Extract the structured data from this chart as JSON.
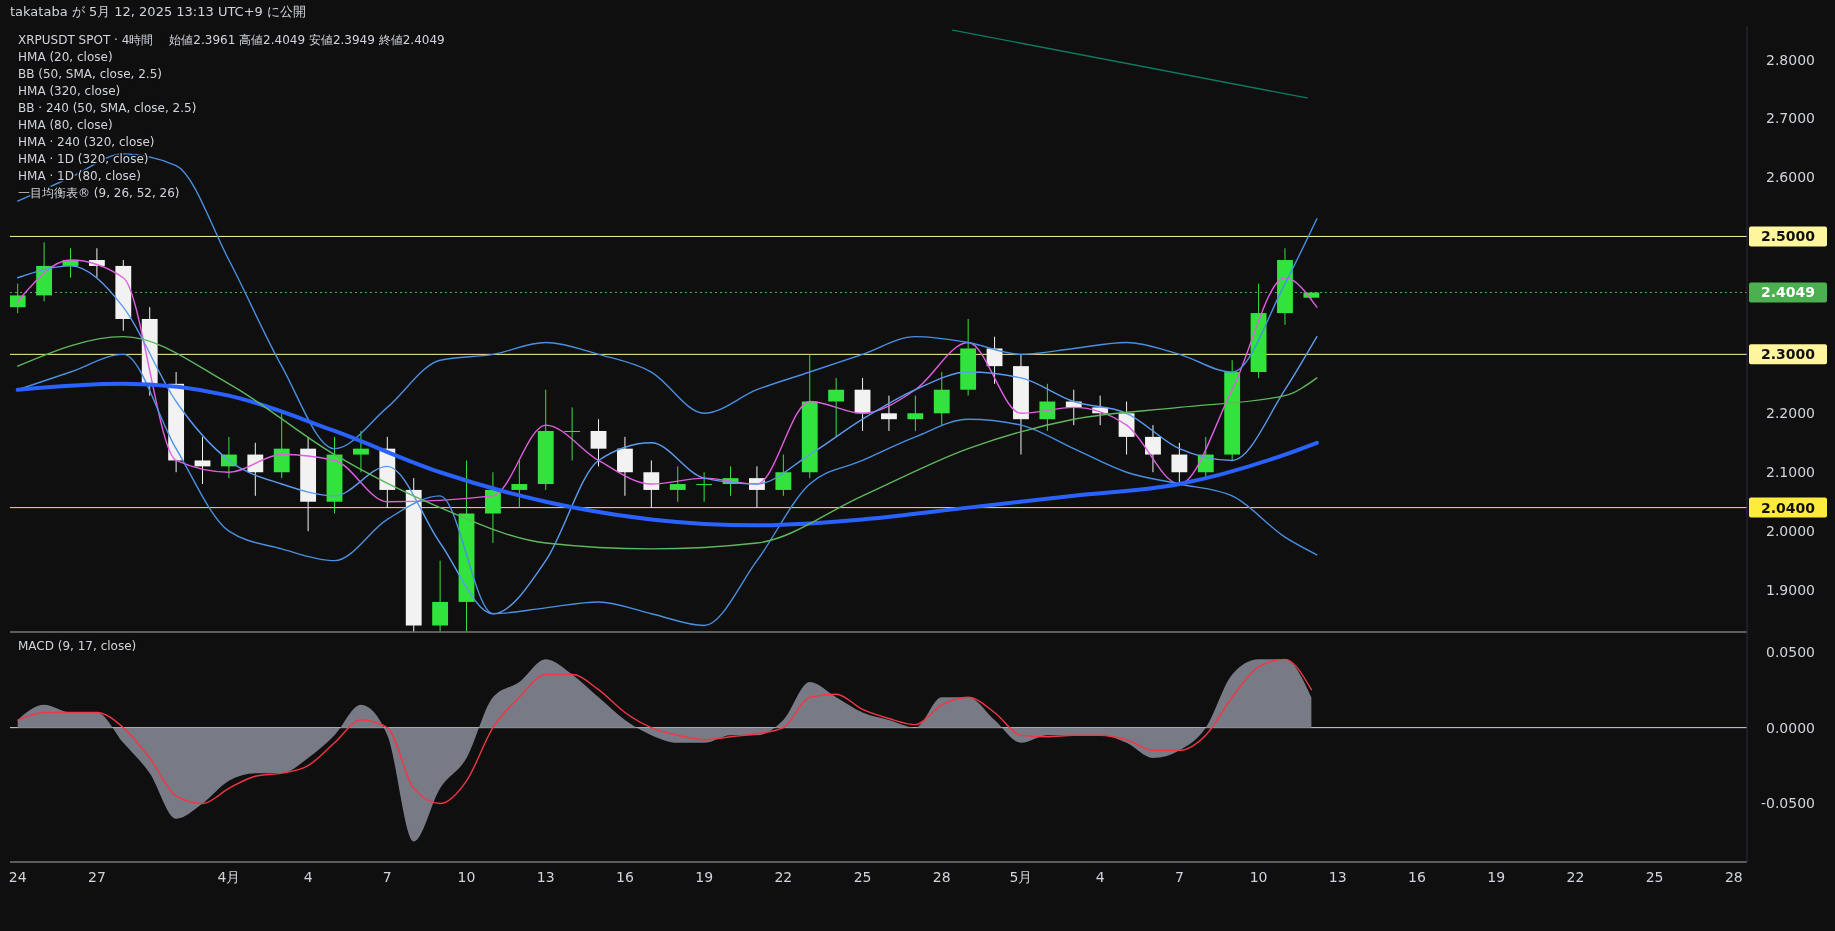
{
  "chart_data": [
    {
      "type": "candlestick",
      "title": "XRPUSDT SPOT · 4時間",
      "annotations": [
        "takataba が 5月 12, 2025 13:13 UTC+9 に公開",
        "始値2.3961 高値2.4049 安値2.3949 終値2.4049",
        "HMA (20, close)",
        "BB (50, SMA, close, 2.5)",
        "HMA (320, close)",
        "BB · 240 (50, SMA, close, 2.5)",
        "HMA (80, close)",
        "HMA · 240 (320, close)",
        "HMA · 1D (320, close)",
        "HMA · 1D (80, close)",
        "一目均衡表® (9, 26, 52, 26)"
      ],
      "x": [
        "2025-03-24",
        "2025-03-25",
        "2025-03-26",
        "2025-03-27",
        "2025-03-28",
        "2025-03-29",
        "2025-03-30",
        "2025-03-31",
        "2025-04-01",
        "2025-04-02",
        "2025-04-03",
        "2025-04-04",
        "2025-04-05",
        "2025-04-06",
        "2025-04-07",
        "2025-04-08",
        "2025-04-09",
        "2025-04-10",
        "2025-04-11",
        "2025-04-12",
        "2025-04-13",
        "2025-04-14",
        "2025-04-15",
        "2025-04-16",
        "2025-04-17",
        "2025-04-18",
        "2025-04-19",
        "2025-04-20",
        "2025-04-21",
        "2025-04-22",
        "2025-04-23",
        "2025-04-24",
        "2025-04-25",
        "2025-04-26",
        "2025-04-27",
        "2025-04-28",
        "2025-04-29",
        "2025-04-30",
        "2025-05-01",
        "2025-05-02",
        "2025-05-03",
        "2025-05-04",
        "2025-05-05",
        "2025-05-06",
        "2025-05-07",
        "2025-05-08",
        "2025-05-09",
        "2025-05-10",
        "2025-05-11",
        "2025-05-12"
      ],
      "ohlc": [
        [
          2.38,
          2.42,
          2.37,
          2.4
        ],
        [
          2.4,
          2.49,
          2.39,
          2.45
        ],
        [
          2.45,
          2.48,
          2.43,
          2.46
        ],
        [
          2.46,
          2.48,
          2.43,
          2.45
        ],
        [
          2.45,
          2.46,
          2.34,
          2.36
        ],
        [
          2.36,
          2.38,
          2.23,
          2.25
        ],
        [
          2.25,
          2.27,
          2.1,
          2.12
        ],
        [
          2.12,
          2.16,
          2.08,
          2.11
        ],
        [
          2.11,
          2.16,
          2.09,
          2.13
        ],
        [
          2.13,
          2.15,
          2.06,
          2.1
        ],
        [
          2.1,
          2.2,
          2.09,
          2.14
        ],
        [
          2.14,
          2.16,
          2.0,
          2.05
        ],
        [
          2.05,
          2.16,
          2.03,
          2.13
        ],
        [
          2.13,
          2.17,
          2.1,
          2.14
        ],
        [
          2.14,
          2.16,
          2.04,
          2.07
        ],
        [
          2.07,
          2.09,
          1.83,
          1.84
        ],
        [
          1.84,
          1.95,
          1.83,
          1.88
        ],
        [
          1.88,
          2.12,
          1.83,
          2.03
        ],
        [
          2.03,
          2.1,
          1.98,
          2.07
        ],
        [
          2.07,
          2.12,
          2.04,
          2.08
        ],
        [
          2.08,
          2.24,
          2.07,
          2.17
        ],
        [
          2.17,
          2.21,
          2.12,
          2.17
        ],
        [
          2.17,
          2.19,
          2.11,
          2.14
        ],
        [
          2.14,
          2.16,
          2.06,
          2.1
        ],
        [
          2.1,
          2.12,
          2.04,
          2.07
        ],
        [
          2.07,
          2.11,
          2.05,
          2.08
        ],
        [
          2.08,
          2.1,
          2.05,
          2.08
        ],
        [
          2.08,
          2.11,
          2.06,
          2.09
        ],
        [
          2.09,
          2.11,
          2.04,
          2.07
        ],
        [
          2.07,
          2.13,
          2.06,
          2.1
        ],
        [
          2.1,
          2.3,
          2.09,
          2.22
        ],
        [
          2.22,
          2.26,
          2.16,
          2.24
        ],
        [
          2.24,
          2.26,
          2.17,
          2.2
        ],
        [
          2.2,
          2.23,
          2.17,
          2.19
        ],
        [
          2.19,
          2.23,
          2.17,
          2.2
        ],
        [
          2.2,
          2.27,
          2.18,
          2.24
        ],
        [
          2.24,
          2.36,
          2.23,
          2.31
        ],
        [
          2.31,
          2.33,
          2.25,
          2.28
        ],
        [
          2.28,
          2.3,
          2.13,
          2.19
        ],
        [
          2.19,
          2.25,
          2.17,
          2.22
        ],
        [
          2.22,
          2.24,
          2.18,
          2.21
        ],
        [
          2.21,
          2.23,
          2.18,
          2.2
        ],
        [
          2.2,
          2.22,
          2.13,
          2.16
        ],
        [
          2.16,
          2.18,
          2.1,
          2.13
        ],
        [
          2.13,
          2.15,
          2.08,
          2.1
        ],
        [
          2.1,
          2.16,
          2.09,
          2.13
        ],
        [
          2.13,
          2.29,
          2.12,
          2.27
        ],
        [
          2.27,
          2.42,
          2.26,
          2.37
        ],
        [
          2.37,
          2.48,
          2.35,
          2.46
        ],
        [
          2.3961,
          2.4049,
          2.3949,
          2.4049
        ]
      ],
      "series": [
        {
          "type": "line",
          "color": "#e05ee0",
          "x": [
            "2025-03-24",
            "2025-03-26",
            "2025-03-28",
            "2025-03-30",
            "2025-04-01",
            "2025-04-03",
            "2025-04-05",
            "2025-04-07",
            "2025-04-11",
            "2025-04-13",
            "2025-04-15",
            "2025-04-17",
            "2025-04-19",
            "2025-04-21",
            "2025-04-23",
            "2025-04-25",
            "2025-04-27",
            "2025-04-29",
            "2025-05-01",
            "2025-05-03",
            "2025-05-05",
            "2025-05-07",
            "2025-05-09",
            "2025-05-11",
            "2025-05-12T05:00"
          ],
          "values": [
            2.39,
            2.46,
            2.43,
            2.12,
            2.1,
            2.13,
            2.12,
            2.05,
            2.06,
            2.18,
            2.12,
            2.08,
            2.09,
            2.08,
            2.22,
            2.2,
            2.24,
            2.32,
            2.2,
            2.21,
            2.18,
            2.08,
            2.24,
            2.43,
            2.38
          ]
        },
        {
          "type": "line",
          "color": "#4a8fe0",
          "x": [
            "2025-03-24",
            "2025-03-26",
            "2025-03-28",
            "2025-03-30",
            "2025-04-01",
            "2025-04-03",
            "2025-04-05",
            "2025-04-07",
            "2025-04-09",
            "2025-04-11",
            "2025-04-13",
            "2025-04-15",
            "2025-04-17",
            "2025-04-19",
            "2025-04-21",
            "2025-04-23",
            "2025-04-25",
            "2025-04-27",
            "2025-04-29",
            "2025-05-01",
            "2025-05-03",
            "2025-05-05",
            "2025-05-07",
            "2025-05-09",
            "2025-05-11",
            "2025-05-12T05:00"
          ],
          "values": [
            2.56,
            2.6,
            2.64,
            2.62,
            2.46,
            2.28,
            2.14,
            2.21,
            2.29,
            2.3,
            2.32,
            2.3,
            2.27,
            2.2,
            2.24,
            2.27,
            2.3,
            2.33,
            2.32,
            2.3,
            2.31,
            2.32,
            2.3,
            2.27,
            2.42,
            2.53
          ]
        },
        {
          "type": "line",
          "color": "#5b9cf0",
          "x": [
            "2025-03-24",
            "2025-03-26",
            "2025-03-28",
            "2025-03-30",
            "2025-04-01",
            "2025-04-03",
            "2025-04-05",
            "2025-04-07",
            "2025-04-09",
            "2025-04-11",
            "2025-04-13",
            "2025-04-15",
            "2025-04-17",
            "2025-04-19",
            "2025-04-21",
            "2025-04-23",
            "2025-04-25",
            "2025-04-27",
            "2025-04-29",
            "2025-05-01",
            "2025-05-03",
            "2025-05-05",
            "2025-05-07",
            "2025-05-09",
            "2025-05-11",
            "2025-05-12T05:00"
          ],
          "values": [
            2.43,
            2.45,
            2.38,
            2.22,
            2.12,
            2.08,
            2.06,
            2.11,
            1.98,
            1.86,
            1.95,
            2.12,
            2.15,
            2.09,
            2.08,
            2.13,
            2.19,
            2.24,
            2.27,
            2.26,
            2.22,
            2.2,
            2.14,
            2.12,
            2.24,
            2.33
          ]
        },
        {
          "type": "line",
          "color": "#4a8fe0",
          "x": [
            "2025-03-24",
            "2025-03-26",
            "2025-03-28",
            "2025-03-30",
            "2025-04-01",
            "2025-04-03",
            "2025-04-05",
            "2025-04-07",
            "2025-04-09",
            "2025-04-11",
            "2025-04-13",
            "2025-04-15",
            "2025-04-17",
            "2025-04-19",
            "2025-04-21",
            "2025-04-23",
            "2025-04-25",
            "2025-04-27",
            "2025-04-29",
            "2025-05-01",
            "2025-05-03",
            "2025-05-05",
            "2025-05-07",
            "2025-05-09",
            "2025-05-11",
            "2025-05-12T05:00"
          ],
          "values": [
            2.24,
            2.27,
            2.3,
            2.14,
            2.0,
            1.97,
            1.95,
            2.02,
            2.06,
            1.86,
            1.87,
            1.88,
            1.86,
            1.84,
            1.95,
            2.08,
            2.12,
            2.16,
            2.19,
            2.18,
            2.14,
            2.1,
            2.08,
            2.06,
            1.99,
            1.96
          ]
        },
        {
          "type": "line",
          "color": "#2962ff",
          "x": [
            "2025-03-24",
            "2025-03-28",
            "2025-04-01",
            "2025-04-05",
            "2025-04-09",
            "2025-04-13",
            "2025-04-17",
            "2025-04-21",
            "2025-04-25",
            "2025-04-29",
            "2025-05-03",
            "2025-05-07",
            "2025-05-11",
            "2025-05-12T05:00"
          ],
          "values": [
            2.24,
            2.25,
            2.23,
            2.17,
            2.1,
            2.05,
            2.02,
            2.01,
            2.02,
            2.04,
            2.06,
            2.08,
            2.13,
            2.15
          ]
        },
        {
          "type": "line",
          "color": "#5fb85f",
          "x": [
            "2025-03-24",
            "2025-03-28",
            "2025-04-01",
            "2025-04-05",
            "2025-04-09",
            "2025-04-13",
            "2025-04-17",
            "2025-04-21",
            "2025-04-25",
            "2025-04-29",
            "2025-05-03",
            "2025-05-07",
            "2025-05-11",
            "2025-05-12T05:00"
          ],
          "values": [
            2.28,
            2.33,
            2.25,
            2.13,
            2.04,
            1.98,
            1.97,
            1.98,
            2.06,
            2.14,
            2.19,
            2.21,
            2.23,
            2.26
          ]
        },
        {
          "type": "line",
          "color": "#0e7a62",
          "x": [
            "2025-04-28T10:00",
            "2025-05-11T20:00"
          ],
          "values": [
            2.85,
            2.735
          ]
        }
      ],
      "xlim": [
        "2025-03-23T17:00",
        "2025-05-28T12:00"
      ],
      "ylim": [
        1.829,
        2.857
      ],
      "yticks": [
        {
          "value": 1.9,
          "label": "1.9000"
        },
        {
          "value": 2.0,
          "label": "2.0000"
        },
        {
          "value": 2.1,
          "label": "2.1000"
        },
        {
          "value": 2.2,
          "label": "2.2000"
        },
        {
          "value": 2.6,
          "label": "2.6000"
        },
        {
          "value": 2.7,
          "label": "2.7000"
        },
        {
          "value": 2.8,
          "label": "2.8000"
        }
      ],
      "tick_labels": "y",
      "ref_lines": [
        {
          "axis": "y",
          "value": 2.5,
          "label": "2.5000",
          "color": "#fff59d"
        },
        {
          "axis": "y",
          "value": 2.3,
          "label": "2.3000",
          "color": "#fff59d"
        },
        {
          "axis": "y",
          "value": 2.04,
          "label": "2.0400",
          "color": "#ffeb3b"
        },
        {
          "axis": "y",
          "value": 2.4049,
          "label": "2.4049",
          "color": "#4caf50",
          "line_style": "dotted"
        }
      ]
    },
    {
      "type": "area",
      "title": "MACD (9, 17, close)",
      "x": [
        "2025-03-24",
        "2025-03-25",
        "2025-03-26",
        "2025-03-27",
        "2025-03-28",
        "2025-03-29",
        "2025-03-30",
        "2025-03-31",
        "2025-04-01",
        "2025-04-02",
        "2025-04-03",
        "2025-04-04",
        "2025-04-05",
        "2025-04-06",
        "2025-04-07",
        "2025-04-08",
        "2025-04-09",
        "2025-04-10",
        "2025-04-11",
        "2025-04-12",
        "2025-04-13",
        "2025-04-14",
        "2025-04-15",
        "2025-04-16",
        "2025-04-17",
        "2025-04-18",
        "2025-04-19",
        "2025-04-20",
        "2025-04-21",
        "2025-04-22",
        "2025-04-23",
        "2025-04-24",
        "2025-04-25",
        "2025-04-26",
        "2025-04-27",
        "2025-04-28",
        "2025-04-29",
        "2025-04-30",
        "2025-05-01",
        "2025-05-02",
        "2025-05-03",
        "2025-05-04",
        "2025-05-05",
        "2025-05-06",
        "2025-05-07",
        "2025-05-08",
        "2025-05-09",
        "2025-05-10",
        "2025-05-11",
        "2025-05-12"
      ],
      "series": [
        {
          "type": "area",
          "color": "#787b86",
          "values": [
            0.005,
            0.015,
            0.01,
            0.01,
            -0.01,
            -0.03,
            -0.06,
            -0.05,
            -0.035,
            -0.03,
            -0.03,
            -0.02,
            -0.005,
            0.015,
            -0.005,
            -0.075,
            -0.04,
            -0.02,
            0.02,
            0.03,
            0.045,
            0.035,
            0.02,
            0.005,
            -0.005,
            -0.01,
            -0.01,
            -0.005,
            -0.005,
            0.005,
            0.03,
            0.02,
            0.01,
            0.005,
            0.0,
            0.02,
            0.02,
            0.005,
            -0.01,
            -0.005,
            -0.005,
            -0.005,
            -0.01,
            -0.02,
            -0.015,
            0.0,
            0.035,
            0.045,
            0.045,
            0.02
          ]
        },
        {
          "type": "line",
          "color": "#f23645",
          "values": [
            0.005,
            0.01,
            0.01,
            0.01,
            0.0,
            -0.02,
            -0.045,
            -0.05,
            -0.04,
            -0.032,
            -0.03,
            -0.025,
            -0.01,
            0.005,
            0.0,
            -0.04,
            -0.05,
            -0.035,
            0.0,
            0.02,
            0.035,
            0.035,
            0.025,
            0.01,
            0.0,
            -0.005,
            -0.008,
            -0.006,
            -0.004,
            0.0,
            0.02,
            0.022,
            0.012,
            0.006,
            0.002,
            0.015,
            0.02,
            0.01,
            -0.005,
            -0.006,
            -0.005,
            -0.005,
            -0.008,
            -0.015,
            -0.015,
            -0.005,
            0.02,
            0.04,
            0.045,
            0.025
          ]
        }
      ],
      "xlim": [
        "2025-03-23T17:00",
        "2025-05-28T12:00"
      ],
      "xticks": [
        {
          "value": "2025-03-24",
          "label": "24"
        },
        {
          "value": "2025-03-27",
          "label": "27"
        },
        {
          "value": "2025-04-01",
          "label": "4月"
        },
        {
          "value": "2025-04-04",
          "label": "4"
        },
        {
          "value": "2025-04-07",
          "label": "7"
        },
        {
          "value": "2025-04-10",
          "label": "10"
        },
        {
          "value": "2025-04-13",
          "label": "13"
        },
        {
          "value": "2025-04-16",
          "label": "16"
        },
        {
          "value": "2025-04-19",
          "label": "19"
        },
        {
          "value": "2025-04-22",
          "label": "22"
        },
        {
          "value": "2025-04-25",
          "label": "25"
        },
        {
          "value": "2025-04-28",
          "label": "28"
        },
        {
          "value": "2025-05-01",
          "label": "5月"
        },
        {
          "value": "2025-05-04",
          "label": "4"
        },
        {
          "value": "2025-05-07",
          "label": "7"
        },
        {
          "value": "2025-05-10",
          "label": "10"
        },
        {
          "value": "2025-05-13",
          "label": "13"
        },
        {
          "value": "2025-05-16",
          "label": "16"
        },
        {
          "value": "2025-05-19",
          "label": "19"
        },
        {
          "value": "2025-05-22",
          "label": "22"
        },
        {
          "value": "2025-05-25",
          "label": "25"
        },
        {
          "value": "2025-05-28",
          "label": "28"
        }
      ],
      "ylim": [
        -0.0885,
        0.063
      ],
      "yticks": [
        {
          "value": -0.05,
          "label": "-0.0500"
        },
        {
          "value": 0,
          "label": "0.0000"
        },
        {
          "value": 0.05,
          "label": "0.0500"
        }
      ],
      "ref_lines": [
        {
          "axis": "y",
          "value": 0,
          "color": "#d1d4dc"
        }
      ]
    }
  ]
}
